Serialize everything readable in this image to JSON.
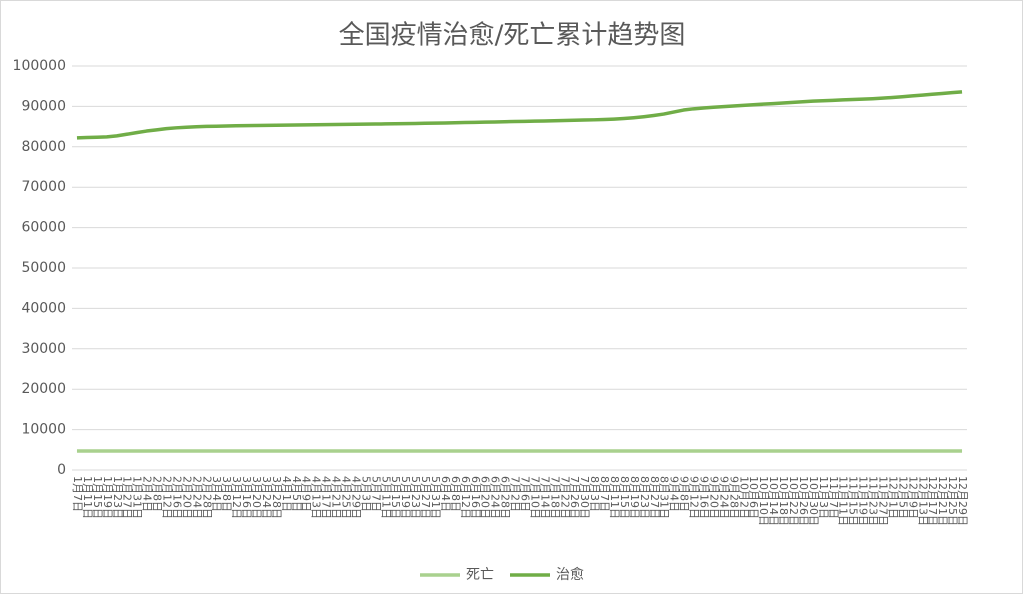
{
  "chart_data": {
    "type": "line",
    "title": "全国疫情治愈/死亡累计趋势图",
    "categories": [
      "1月7日",
      "1月11日",
      "1月15日",
      "1月19日",
      "1月23日",
      "1月27日",
      "1月31日",
      "2月4日",
      "2月8日",
      "2月12日",
      "2月16日",
      "2月20日",
      "2月24日",
      "2月28日",
      "3月4日",
      "3月8日",
      "3月12日",
      "3月16日",
      "3月20日",
      "3月24日",
      "3月28日",
      "4月1日",
      "4月5日",
      "4月9日",
      "4月13日",
      "4月17日",
      "4月21日",
      "4月25日",
      "4月29日",
      "5月3日",
      "5月7日",
      "5月11日",
      "5月15日",
      "5月19日",
      "5月23日",
      "5月27日",
      "5月31日",
      "6月4日",
      "6月8日",
      "6月12日",
      "6月16日",
      "6月20日",
      "6月24日",
      "6月28日",
      "7月2日",
      "7月6日",
      "7月10日",
      "7月14日",
      "7月18日",
      "7月22日",
      "7月26日",
      "7月30日",
      "8月3日",
      "8月7日",
      "8月11日",
      "8月15日",
      "8月19日",
      "8月23日",
      "8月27日",
      "8月31日",
      "9月4日",
      "9月8日",
      "9月12日",
      "9月16日",
      "9月20日",
      "9月24日",
      "9月28日",
      "10月2日",
      "10月6日",
      "10月10日",
      "10月14日",
      "10月18日",
      "10月22日",
      "10月26日",
      "10月30日",
      "11月3日",
      "11月7日",
      "11月11日",
      "11月15日",
      "11月19日",
      "11月23日",
      "11月27日",
      "12月1日",
      "12月5日",
      "12月9日",
      "12月13日",
      "12月17日",
      "12月21日",
      "12月25日",
      "12月29日"
    ],
    "series": [
      {
        "name": "死亡",
        "color": "#a9d18e",
        "values": [
          4700,
          4700,
          4700,
          4700,
          4700,
          4700,
          4700,
          4700,
          4700,
          4700,
          4700,
          4700,
          4700,
          4700,
          4700,
          4700,
          4700,
          4700,
          4700,
          4700,
          4700,
          4700,
          4700,
          4700,
          4700,
          4700,
          4700,
          4700,
          4700,
          4700,
          4700,
          4700,
          4700,
          4700,
          4700,
          4700,
          4700,
          4700,
          4700,
          4700,
          4700,
          4700,
          4700,
          4700,
          4700,
          4700,
          4700,
          4700,
          4700,
          4700,
          4700,
          4700,
          4700,
          4700,
          4700,
          4700,
          4700,
          4700,
          4700,
          4700,
          4700,
          4700,
          4700,
          4700,
          4700,
          4700,
          4700,
          4700,
          4700,
          4700,
          4700,
          4700,
          4700,
          4700,
          4700,
          4700,
          4700,
          4700,
          4700,
          4700,
          4700,
          4700,
          4700,
          4700,
          4700,
          4700,
          4700,
          4700,
          4700,
          4700
        ]
      },
      {
        "name": "治愈",
        "color": "#70ad47",
        "values": [
          82200,
          82300,
          82350,
          82450,
          82700,
          83100,
          83500,
          83900,
          84200,
          84500,
          84700,
          84850,
          84950,
          85050,
          85100,
          85150,
          85200,
          85250,
          85280,
          85300,
          85330,
          85360,
          85390,
          85420,
          85450,
          85480,
          85510,
          85540,
          85570,
          85600,
          85630,
          85660,
          85700,
          85740,
          85780,
          85820,
          85860,
          85900,
          85950,
          86000,
          86050,
          86100,
          86150,
          86200,
          86250,
          86300,
          86350,
          86400,
          86450,
          86500,
          86560,
          86620,
          86680,
          86750,
          86850,
          87000,
          87200,
          87450,
          87750,
          88100,
          88600,
          89100,
          89400,
          89600,
          89800,
          89950,
          90100,
          90250,
          90400,
          90550,
          90700,
          90850,
          91000,
          91150,
          91300,
          91400,
          91500,
          91600,
          91700,
          91800,
          91900,
          92050,
          92200,
          92400,
          92600,
          92800,
          93000,
          93200,
          93400,
          93600
        ]
      }
    ],
    "ylim": [
      0,
      100000
    ],
    "yticks": [
      0,
      10000,
      20000,
      30000,
      40000,
      50000,
      60000,
      70000,
      80000,
      90000,
      100000
    ],
    "grid": true,
    "legend": "bottom"
  }
}
